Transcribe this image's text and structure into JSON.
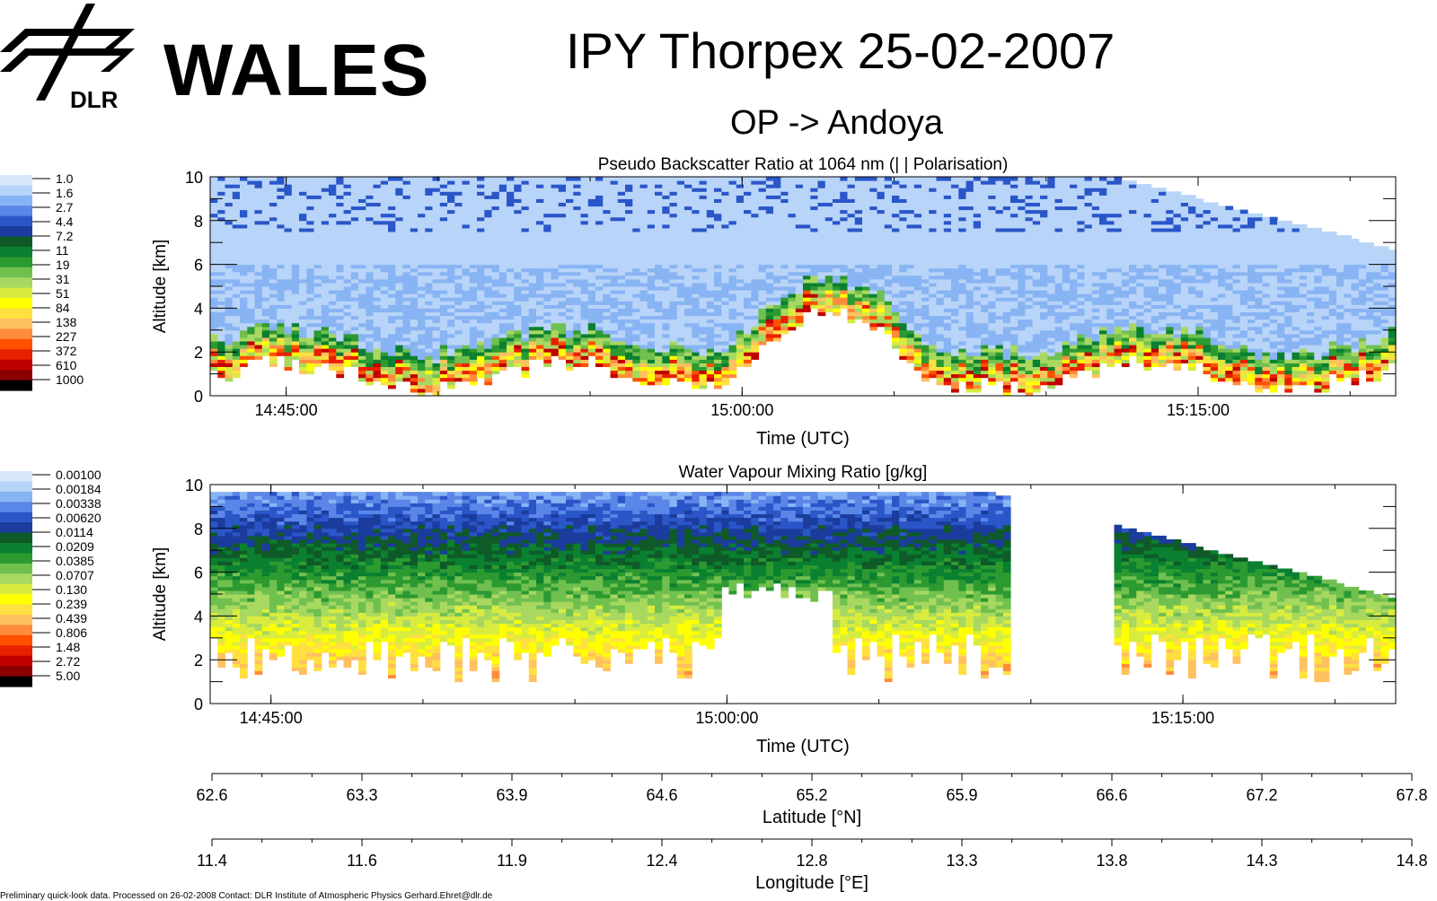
{
  "header": {
    "logo_org": "DLR",
    "logo_name": "WALES",
    "title": "IPY Thorpex  25-02-2007",
    "subtitle": "OP -> Andoya"
  },
  "footer": {
    "text": "Preliminary quick-look data.      Processed on 26-02-2008    Contact: DLR Institute of Atmospheric Physics  Gerhard.Ehret@dlr.de"
  },
  "colors": {
    "scale": [
      "#000000",
      "#8b0000",
      "#c00000",
      "#e82000",
      "#ff5000",
      "#ff8c3c",
      "#ffc060",
      "#ffe040",
      "#ffff00",
      "#d8ec40",
      "#a8d860",
      "#70c050",
      "#2c9a30",
      "#0a8030",
      "#0f5a28",
      "#1b3c9c",
      "#2a56c8",
      "#5a86e8",
      "#88b4f4",
      "#b8d4f8",
      "#d8e8fc"
    ]
  },
  "chart_data": [
    {
      "type": "heatmap",
      "title": "Pseudo Backscatter Ratio at 1064 nm    (| | Polarisation)",
      "xlabel": "Time (UTC)",
      "ylabel": "Altitude [km]",
      "x_range": [
        "14:42:30",
        "15:21:30"
      ],
      "xticks": [
        "14:45:00",
        "15:00:00",
        "15:15:00"
      ],
      "ylim": [
        0,
        10
      ],
      "yticks": [
        0,
        2,
        4,
        6,
        8,
        10
      ],
      "colorbar": {
        "labels": [
          "1.0",
          "1.6",
          "2.7",
          "4.4",
          "7.2",
          "11",
          "19",
          "31",
          "51",
          "84",
          "138",
          "227",
          "372",
          "610",
          "1000"
        ]
      }
    },
    {
      "type": "heatmap",
      "title": "Water Vapour Mixing Ratio [g/kg]",
      "xlabel": "Time (UTC)",
      "ylabel": "Altitude [km]",
      "x_range": [
        "14:43:00",
        "15:22:00"
      ],
      "xticks": [
        "14:45:00",
        "15:00:00",
        "15:15:00"
      ],
      "ylim": [
        0,
        10
      ],
      "yticks": [
        0,
        2,
        4,
        6,
        8,
        10
      ],
      "colorbar": {
        "labels": [
          "0.00100",
          "0.00184",
          "0.00338",
          "0.00620",
          "0.0114",
          "0.0209",
          "0.0385",
          "0.0707",
          "0.130",
          "0.239",
          "0.439",
          "0.806",
          "1.48",
          "2.72",
          "5.00"
        ]
      }
    },
    {
      "type": "axis",
      "xlabel": "Latitude [°N]",
      "ticks": [
        "62.6",
        "63.3",
        "63.9",
        "64.6",
        "65.2",
        "65.9",
        "66.6",
        "67.2",
        "67.8"
      ]
    },
    {
      "type": "axis",
      "xlabel": "Longitude [°E]",
      "ticks": [
        "11.4",
        "11.6",
        "11.9",
        "12.4",
        "12.8",
        "13.3",
        "13.8",
        "14.3",
        "14.8"
      ]
    }
  ]
}
